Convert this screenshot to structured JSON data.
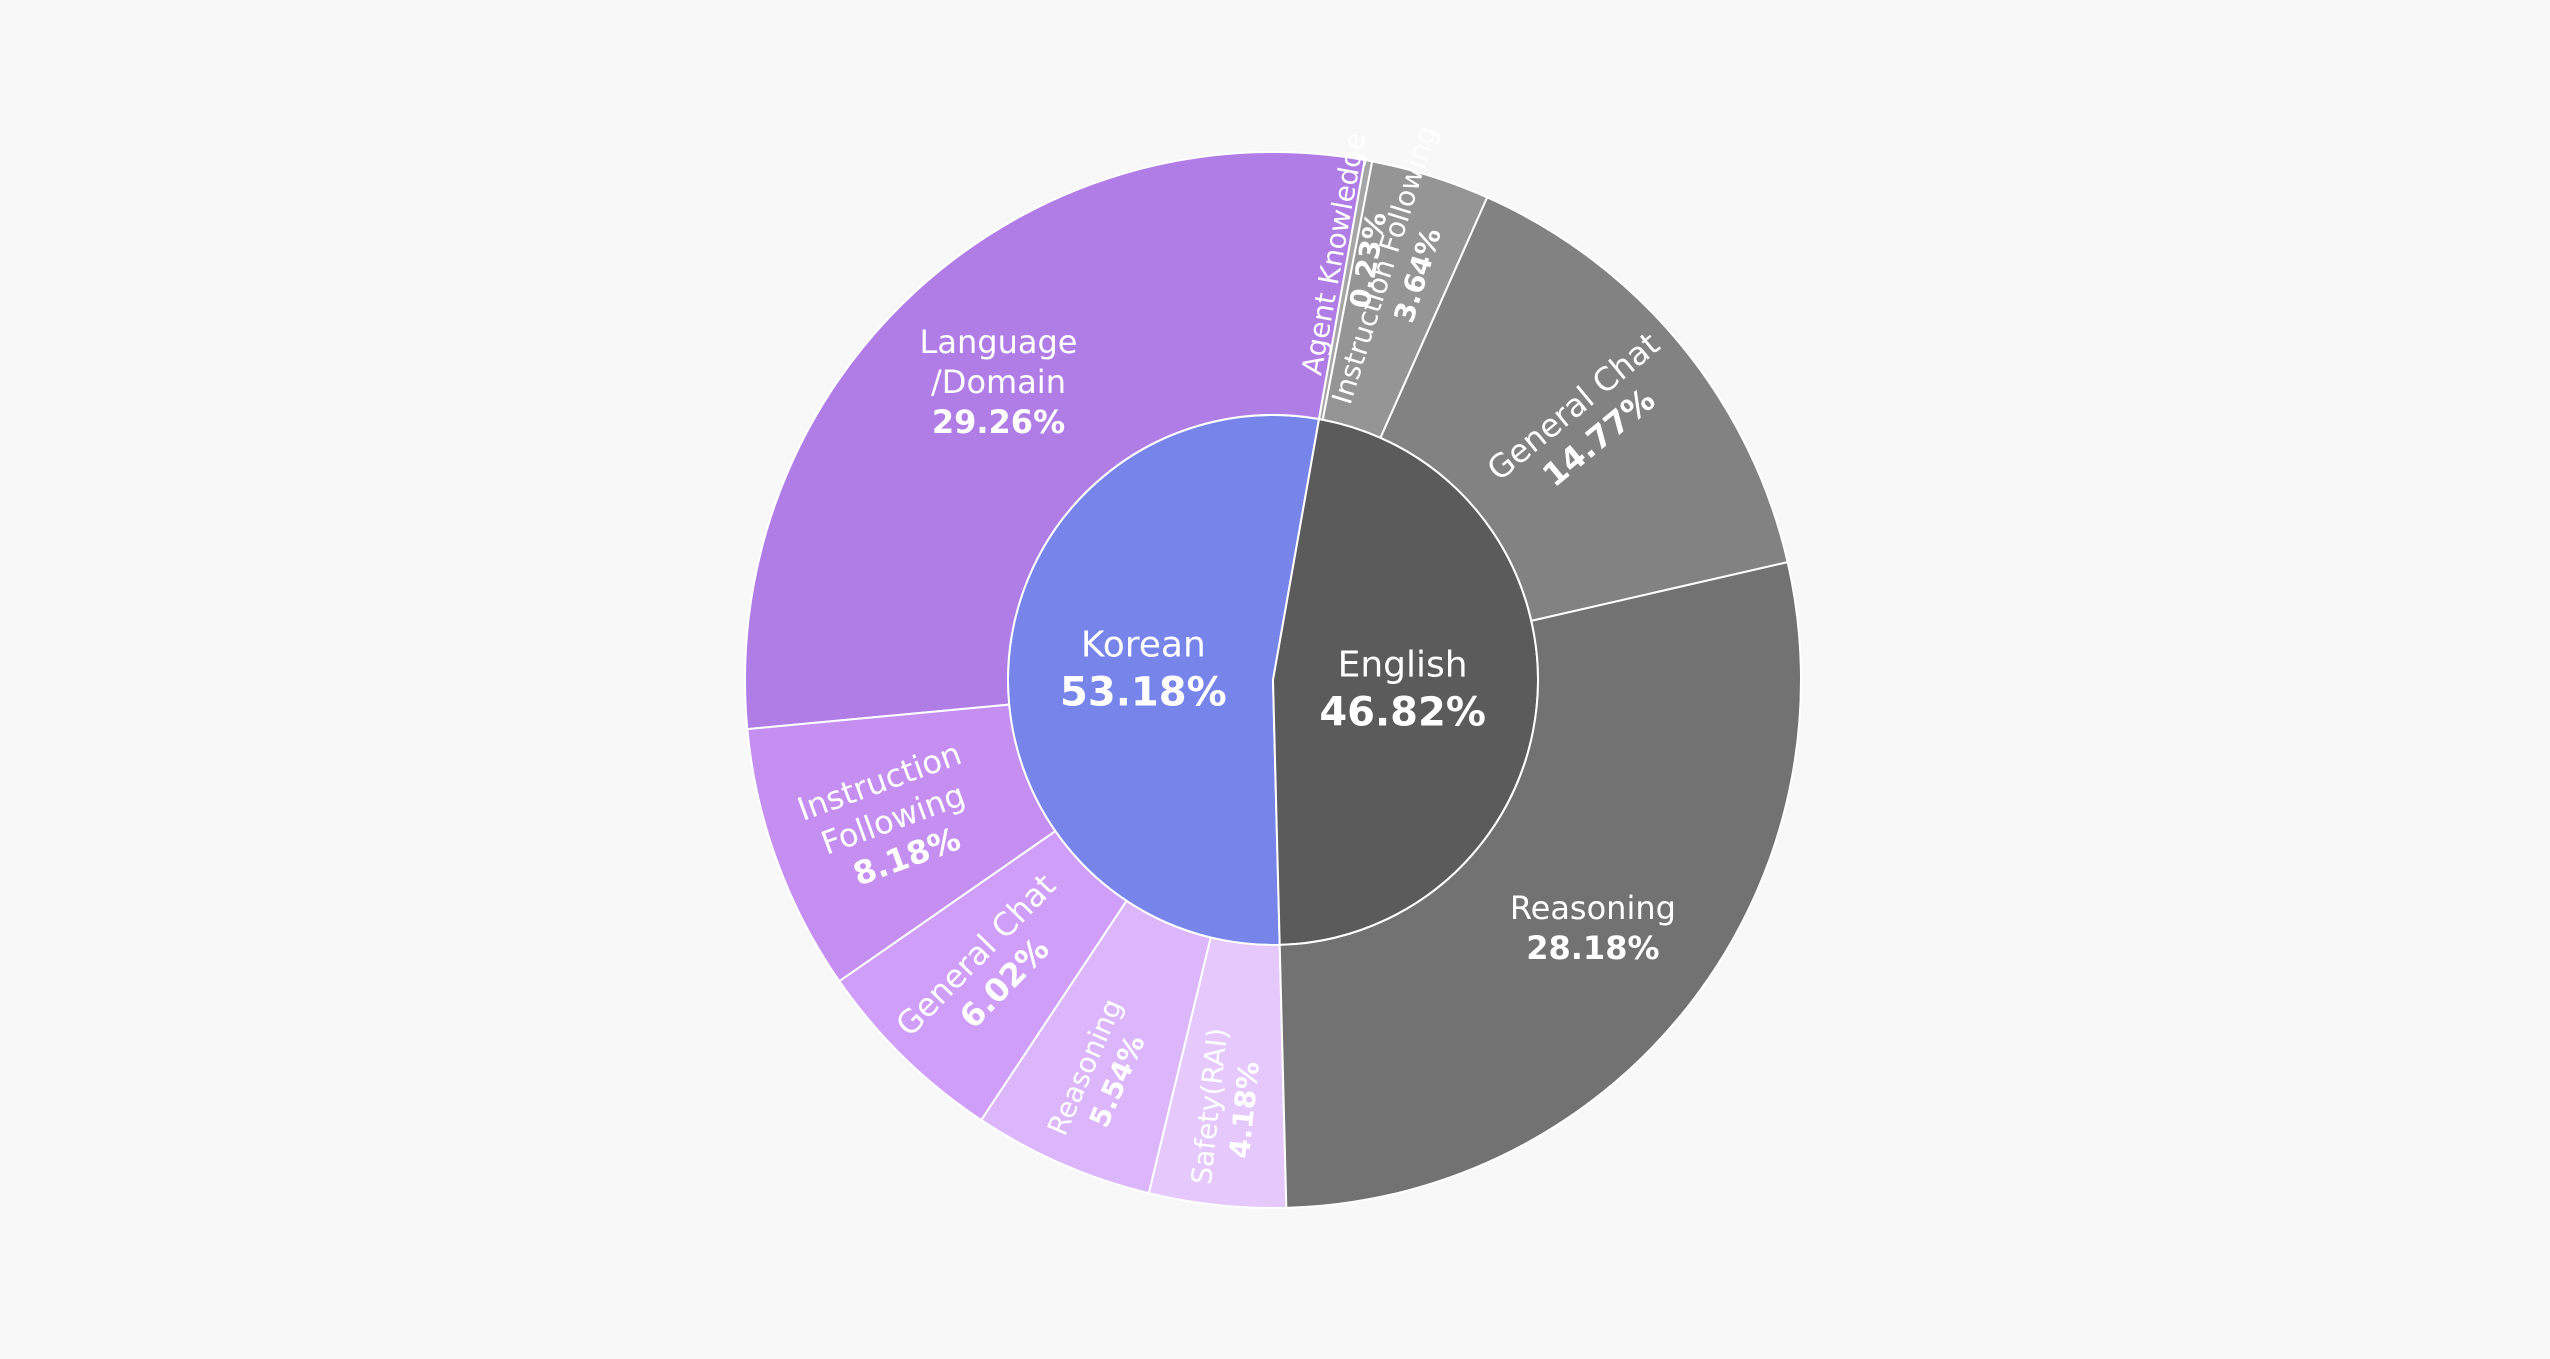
{
  "chart_data": {
    "type": "sunburst",
    "series": [
      {
        "name": "Korean",
        "value": 53.18,
        "value_label": "53.18%",
        "color": "#7785eb",
        "categories": [
          "Language\n/Domain",
          "Instruction\nFollowing",
          "General Chat",
          "Reasoning",
          "Safety(RAI)"
        ],
        "values": [
          29.26,
          8.18,
          6.02,
          5.54,
          4.18
        ],
        "value_labels": [
          "29.26%",
          "8.18%",
          "6.02%",
          "5.54%",
          "4.18%"
        ],
        "colors": [
          "#b07ce6",
          "#c48ff0",
          "#cf9ef9",
          "#dcb6fb",
          "#e5c9fc"
        ]
      },
      {
        "name": "English",
        "value": 46.82,
        "value_label": "46.82%",
        "color": "#5b5b5b",
        "categories": [
          "Agent Knowledge",
          "Instruction Following",
          "General Chat",
          "Reasoning"
        ],
        "values": [
          0.23,
          3.64,
          14.77,
          28.18
        ],
        "value_labels": [
          "0.23%",
          "3.64%",
          "14.77%",
          "28.18%"
        ],
        "colors": [
          "#a6a6a6",
          "#959595",
          "#828282",
          "#727272"
        ]
      }
    ]
  }
}
